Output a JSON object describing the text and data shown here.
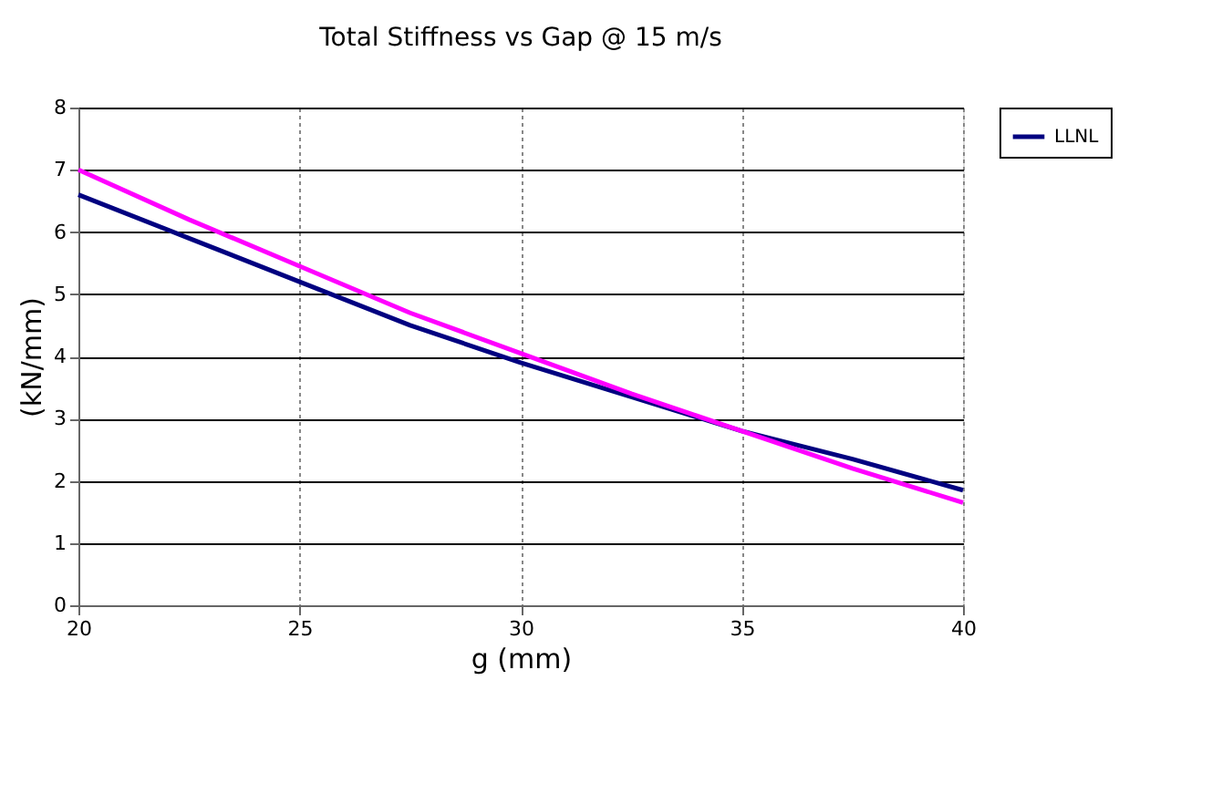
{
  "chart_data": {
    "type": "line",
    "title": "Total Stiffness vs Gap @ 15 m/s",
    "xlabel": "g (mm)",
    "ylabel": "(kN/mm)",
    "x": [
      20,
      22.5,
      25,
      27.5,
      30,
      32.5,
      35,
      37.5,
      40
    ],
    "series": [
      {
        "name": "LLNL",
        "color": "#000080",
        "values": [
          6.6,
          5.9,
          5.2,
          4.5,
          3.9,
          3.35,
          2.8,
          2.35,
          1.85
        ]
      },
      {
        "color": "#ff00ff",
        "values": [
          7.0,
          6.2,
          5.45,
          4.7,
          4.05,
          3.4,
          2.8,
          2.2,
          1.65
        ]
      }
    ],
    "xlim": [
      20,
      40
    ],
    "xticks": [
      20,
      25,
      30,
      35,
      40
    ],
    "ylim": [
      0,
      8
    ],
    "yticks": [
      0,
      1,
      2,
      3,
      4,
      5,
      6,
      7,
      8
    ],
    "grid": true,
    "legend": "right",
    "marker": "none",
    "line_style": "solid"
  }
}
